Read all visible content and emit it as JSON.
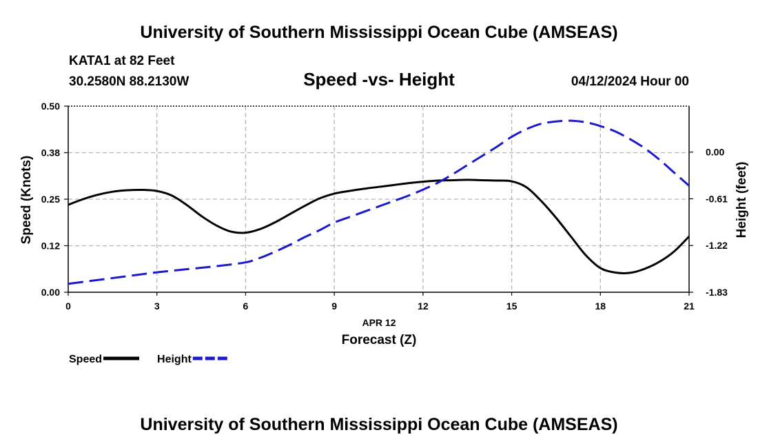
{
  "header": {
    "title": "University of Southern Mississippi Ocean Cube (AMSEAS)",
    "station": "KATA1 at 82 Feet",
    "coords": "30.2580N  88.2130W",
    "subtitle": "Speed -vs- Height",
    "datetime": "04/12/2024 Hour 00"
  },
  "footer": {
    "title": "University of Southern Mississippi Ocean Cube (AMSEAS)"
  },
  "chart_data": {
    "type": "line",
    "title": "Speed -vs- Height",
    "xlabel": "Forecast (Z)",
    "xsublabel": "APR 12",
    "ylabel_left": "Speed (Knots)",
    "ylabel_right": "Height (feet)",
    "xlim": [
      0,
      21
    ],
    "ylim_left": [
      0.0,
      0.5
    ],
    "ylim_right": [
      -1.83,
      0.6
    ],
    "x_ticks": [
      0,
      3,
      6,
      9,
      12,
      15,
      18,
      21
    ],
    "x_tick_labels": [
      "0",
      "3",
      "6",
      "9",
      "12",
      "15",
      "18",
      "21"
    ],
    "y_left_ticks": [
      0.0,
      0.125,
      0.25,
      0.375,
      0.5
    ],
    "y_left_tick_labels": [
      "0.00",
      "0.12",
      "0.25",
      "0.38",
      "0.50"
    ],
    "y_right_ticks": [
      -1.83,
      -1.22,
      -0.61,
      0.0
    ],
    "y_right_tick_labels": [
      "-1.83",
      "-1.22",
      "-0.61",
      "0.00"
    ],
    "grid": true,
    "legend": [
      {
        "label": "Speed",
        "color": "#000000",
        "style": "solid"
      },
      {
        "label": "Height",
        "color": "#1a1acc",
        "style": "dashed"
      }
    ],
    "series": [
      {
        "name": "Speed",
        "axis": "left",
        "color": "#000000",
        "style": "solid",
        "x": [
          0,
          0.5,
          1,
          1.5,
          2,
          2.5,
          3,
          3.5,
          4,
          4.5,
          5,
          5.5,
          6,
          6.5,
          7,
          7.5,
          8,
          8.5,
          9,
          9.5,
          10,
          10.5,
          11,
          11.5,
          12,
          12.5,
          13,
          13.5,
          14,
          14.5,
          15,
          15.5,
          16,
          16.5,
          17,
          17.5,
          18,
          18.5,
          19,
          19.5,
          20,
          20.5,
          21
        ],
        "values": [
          0.235,
          0.25,
          0.262,
          0.27,
          0.274,
          0.275,
          0.272,
          0.26,
          0.235,
          0.205,
          0.18,
          0.163,
          0.16,
          0.17,
          0.188,
          0.21,
          0.232,
          0.252,
          0.265,
          0.272,
          0.278,
          0.283,
          0.288,
          0.293,
          0.297,
          0.3,
          0.301,
          0.302,
          0.301,
          0.3,
          0.298,
          0.282,
          0.245,
          0.2,
          0.15,
          0.1,
          0.065,
          0.053,
          0.052,
          0.063,
          0.082,
          0.11,
          0.15
        ]
      },
      {
        "name": "Height",
        "axis": "right",
        "color": "#1a1acc",
        "style": "dashed",
        "x": [
          0,
          1,
          2,
          3,
          4,
          5,
          6,
          6.5,
          7,
          7.5,
          8,
          8.5,
          9,
          9.5,
          10,
          10.5,
          11,
          11.5,
          12,
          12.5,
          13,
          13.5,
          14,
          14.5,
          15,
          15.5,
          16,
          16.5,
          17,
          17.5,
          18,
          18.5,
          19,
          19.5,
          20,
          20.5,
          21
        ],
        "values": [
          -1.72,
          -1.67,
          -1.62,
          -1.57,
          -1.53,
          -1.49,
          -1.44,
          -1.38,
          -1.3,
          -1.21,
          -1.11,
          -1.02,
          -0.92,
          -0.85,
          -0.78,
          -0.71,
          -0.64,
          -0.57,
          -0.49,
          -0.4,
          -0.29,
          -0.17,
          -0.05,
          0.07,
          0.2,
          0.3,
          0.37,
          0.4,
          0.41,
          0.39,
          0.34,
          0.27,
          0.17,
          0.05,
          -0.1,
          -0.27,
          -0.44
        ]
      }
    ]
  }
}
